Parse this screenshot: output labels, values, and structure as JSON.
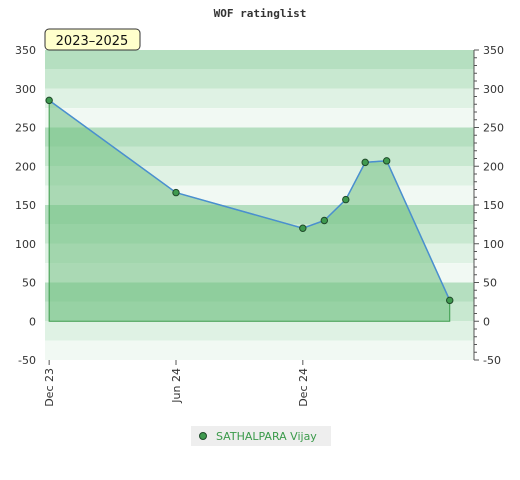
{
  "chart_data": {
    "type": "area",
    "title": "WOF ratinglist",
    "badge": "2023–2025",
    "xlabel": "",
    "ylabel": "",
    "ylim": [
      -50,
      350
    ],
    "y_ticks": [
      350,
      300,
      250,
      200,
      150,
      100,
      50,
      0,
      -50
    ],
    "y_tick_labels": [
      "350",
      "300",
      "250",
      "200",
      "150",
      "100",
      "50",
      "0",
      "-50"
    ],
    "x_range": [
      "2023-11-25",
      "2025-08-05"
    ],
    "x_ticks": [
      {
        "date": "2023-12-01",
        "label": "Dec 23"
      },
      {
        "date": "2024-06-01",
        "label": "Jun 24"
      },
      {
        "date": "2024-12-01",
        "label": "Dec 24"
      }
    ],
    "grid": true,
    "legend_position": "bottom",
    "series": [
      {
        "name": "SATHALPARA Vijay",
        "color": "#4a8fd0",
        "fill": "#6fbf7f",
        "marker": "#3f9a4f",
        "points": [
          {
            "x": "2023-12-01",
            "y": 285
          },
          {
            "x": "2024-06-01",
            "y": 166
          },
          {
            "x": "2024-12-01",
            "y": 120
          },
          {
            "x": "2025-01-01",
            "y": 130
          },
          {
            "x": "2025-02-01",
            "y": 157
          },
          {
            "x": "2025-03-01",
            "y": 205
          },
          {
            "x": "2025-04-01",
            "y": 207
          },
          {
            "x": "2025-07-01",
            "y": 27
          }
        ]
      }
    ]
  }
}
